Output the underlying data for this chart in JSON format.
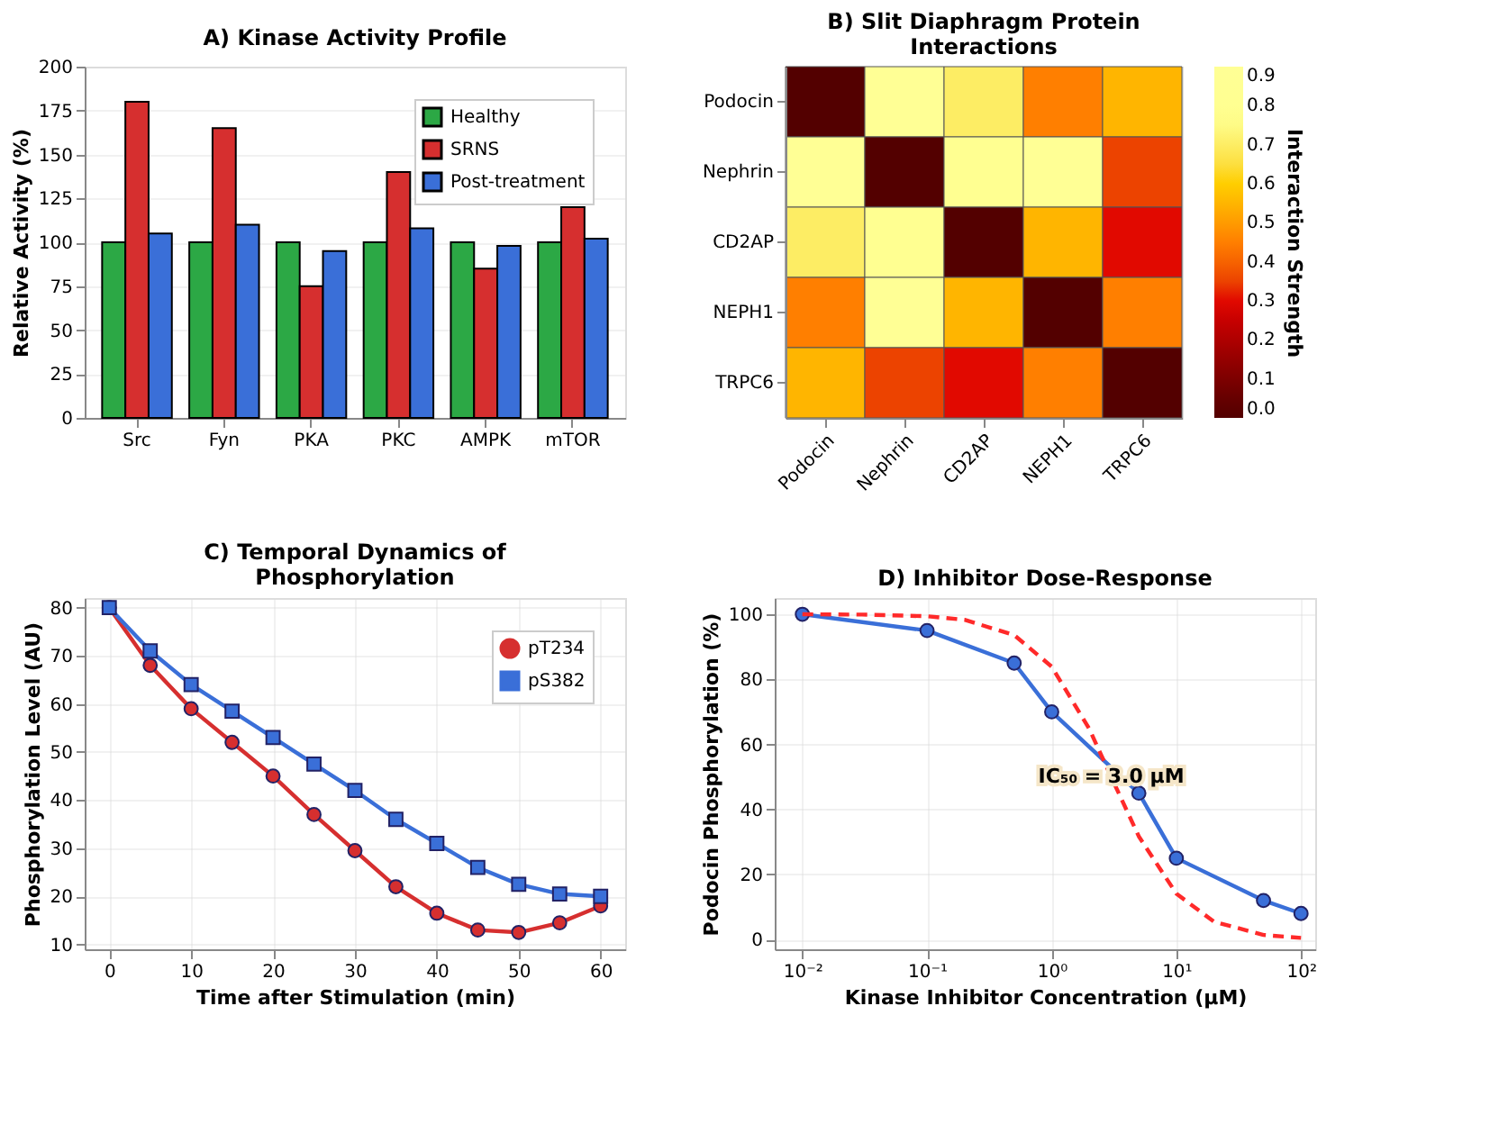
{
  "chart_data": [
    {
      "type": "bar",
      "title": "A) Kinase Activity Profile",
      "ylabel": "Relative Activity (%)",
      "categories": [
        "Src",
        "Fyn",
        "PKA",
        "PKC",
        "AMPK",
        "mTOR"
      ],
      "series": [
        {
          "name": "Healthy",
          "color": "#2ca845",
          "values": [
            100,
            100,
            100,
            100,
            100,
            100
          ]
        },
        {
          "name": "SRNS",
          "color": "#d62f2f",
          "values": [
            180,
            165,
            75,
            140,
            85,
            120
          ]
        },
        {
          "name": "Post-treatment",
          "color": "#3a6fd8",
          "values": [
            105,
            110,
            95,
            108,
            98,
            102
          ]
        }
      ],
      "ylim": [
        0,
        200
      ],
      "yticks": [
        0,
        25,
        50,
        75,
        100,
        125,
        150,
        175,
        200
      ],
      "grid": "y",
      "legend": "top right"
    },
    {
      "type": "heatmap",
      "title": "B) Slit Diaphragm Protein Interactions",
      "categories": [
        "Podocin",
        "Nephrin",
        "CD2AP",
        "NEPH1",
        "TRPC6"
      ],
      "y_categories": [
        "Podocin",
        "Nephrin",
        "CD2AP",
        "NEPH1",
        "TRPC6"
      ],
      "cells": [
        [
          0,
          0.9,
          0.7,
          0.45,
          0.55
        ],
        [
          0.9,
          0,
          0.8,
          0.9,
          0.35
        ],
        [
          0.7,
          0.8,
          0,
          0.55,
          0.3
        ],
        [
          0.45,
          0.9,
          0.55,
          0,
          0.45
        ],
        [
          0.55,
          0.35,
          0.3,
          0.45,
          0
        ]
      ],
      "clabel": "Interaction Strength",
      "clim": [
        0,
        0.9
      ],
      "cticks": [
        {
          "value": 0,
          "label": "0.0"
        },
        0.1,
        0.2,
        0.3,
        0.4,
        0.5,
        0.6,
        0.7,
        0.8,
        0.9
      ]
    },
    {
      "type": "line",
      "title": "C) Temporal Dynamics of Phosphorylation",
      "xlabel": "Time after Stimulation (min)",
      "ylabel": "Phosphorylation Level (AU)",
      "x": [
        0,
        5,
        10,
        15,
        20,
        25,
        30,
        35,
        40,
        45,
        50,
        55,
        60
      ],
      "series": [
        {
          "name": "pT234",
          "color": "#d62f2f",
          "marker": "circle",
          "values": [
            80,
            68,
            59,
            52,
            45,
            37,
            29.5,
            22,
            16.5,
            13,
            12.5,
            14.5,
            18
          ]
        },
        {
          "name": "pS382",
          "color": "#3a6fd8",
          "marker": "square",
          "values": [
            80,
            71,
            64,
            58.5,
            53,
            47.5,
            42,
            36,
            31,
            26,
            22.5,
            20.5,
            20
          ]
        }
      ],
      "xlim": [
        -3,
        63
      ],
      "xticks": [
        0,
        10,
        20,
        30,
        40,
        50,
        60
      ],
      "ylim": [
        9,
        82
      ],
      "yticks": [
        10,
        20,
        30,
        40,
        50,
        60,
        70,
        80
      ],
      "grid": true,
      "legend": "top right",
      "line_style": "solid"
    },
    {
      "type": "line",
      "title": "D) Inhibitor Dose-Response",
      "xlabel": "Kinase Inhibitor Concentration (μM)",
      "ylabel": "Podocin Phosphorylation (%)",
      "series": [
        {
          "type": "line",
          "color": "#3a6fd8",
          "marker": "circle",
          "line_style": "solid",
          "x": [
            0.01,
            0.1,
            0.5,
            1,
            5,
            10,
            50,
            100
          ],
          "values": [
            100,
            95,
            85,
            70,
            45,
            25,
            12,
            8
          ]
        },
        {
          "type": "line",
          "color": "#ff2a2a",
          "marker": "none",
          "line_style": "dashed",
          "x": [
            0.01,
            0.03,
            0.1,
            0.2,
            0.5,
            1,
            2,
            3,
            5,
            10,
            20,
            50,
            100
          ],
          "values": [
            100,
            99.9,
            99.4,
            98.3,
            93.6,
            83.9,
            64.8,
            50,
            31.7,
            14.1,
            5.5,
            1.4,
            0.5
          ]
        }
      ],
      "log": "x",
      "xlim": [
        0.006,
        130
      ],
      "xticks": [
        {
          "value": 0.01,
          "label": "10⁻²"
        },
        {
          "value": 0.1,
          "label": "10⁻¹"
        },
        {
          "value": 1,
          "label": "10⁰"
        },
        {
          "value": 10,
          "label": "10¹"
        },
        {
          "value": 100,
          "label": "10²"
        }
      ],
      "ylim": [
        -3,
        105
      ],
      "yticks": [
        0,
        20,
        40,
        60,
        80,
        100
      ],
      "grid": true,
      "legend": false,
      "annotations": [
        {
          "text": "IC₅₀ = 3.0 μM",
          "x": 3,
          "y": 50
        }
      ]
    }
  ]
}
